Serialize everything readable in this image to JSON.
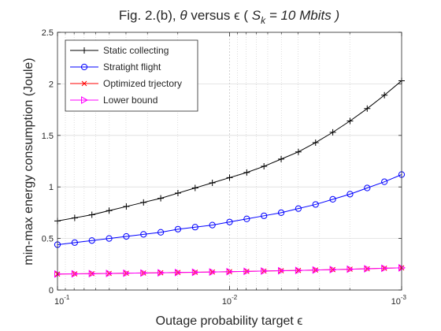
{
  "chart_data": {
    "type": "line",
    "title_prefix": "Fig. 2.(b), ",
    "title_theta": "θ",
    "title_versus": " versus ",
    "title_epsilon": "ϵ",
    "title_open": " (  ",
    "title_S": "S",
    "title_k": "k",
    "title_value": " = 10 Mbits )",
    "xlabel_text": "Outage probability target ",
    "xlabel_epsilon": "ϵ",
    "ylabel": "min-max energy consumption (Joule)",
    "xscale": "log",
    "xreverse": true,
    "xlim": [
      0.1,
      0.001
    ],
    "ylim": [
      0,
      2.5
    ],
    "yticks": [
      0,
      0.5,
      1,
      1.5,
      2,
      2.5
    ],
    "ytick_labels": [
      "0",
      "0.5",
      "1",
      "1.5",
      "2",
      "2.5"
    ],
    "xticks": [
      0.1,
      0.01,
      0.001
    ],
    "xtick_labels": [
      {
        "base": "10",
        "exp": "-1"
      },
      {
        "base": "10",
        "exp": "-2"
      },
      {
        "base": "10",
        "exp": "-3"
      }
    ],
    "grid": true,
    "legend_position": "top-left",
    "x_exponents": [
      -1,
      -1.1,
      -1.2,
      -1.3,
      -1.4,
      -1.5,
      -1.6,
      -1.7,
      -1.8,
      -1.9,
      -2,
      -2.1,
      -2.2,
      -2.3,
      -2.4,
      -2.5,
      -2.6,
      -2.7,
      -2.8,
      -2.9,
      -3
    ],
    "series": [
      {
        "name": "Static collecting",
        "color": "#000000",
        "marker": "plus",
        "values": [
          0.67,
          0.7,
          0.73,
          0.77,
          0.81,
          0.85,
          0.89,
          0.94,
          0.99,
          1.04,
          1.09,
          1.14,
          1.2,
          1.27,
          1.34,
          1.43,
          1.53,
          1.64,
          1.76,
          1.89,
          2.03
        ]
      },
      {
        "name": "Stratight flight",
        "color": "#0000ff",
        "marker": "circle",
        "values": [
          0.44,
          0.46,
          0.48,
          0.5,
          0.52,
          0.54,
          0.56,
          0.59,
          0.61,
          0.63,
          0.66,
          0.69,
          0.72,
          0.75,
          0.79,
          0.83,
          0.88,
          0.93,
          0.99,
          1.05,
          1.12
        ]
      },
      {
        "name": "Optimized trjectory",
        "color": "#ff0000",
        "marker": "x",
        "values": [
          0.155,
          0.157,
          0.159,
          0.161,
          0.163,
          0.165,
          0.167,
          0.17,
          0.172,
          0.175,
          0.178,
          0.181,
          0.184,
          0.187,
          0.19,
          0.194,
          0.198,
          0.202,
          0.206,
          0.211,
          0.215
        ]
      },
      {
        "name": "Lower bound",
        "color": "#ff00ff",
        "marker": "triangle-right",
        "values": [
          0.155,
          0.157,
          0.159,
          0.161,
          0.163,
          0.165,
          0.167,
          0.17,
          0.172,
          0.175,
          0.178,
          0.181,
          0.184,
          0.187,
          0.19,
          0.194,
          0.198,
          0.202,
          0.206,
          0.211,
          0.215
        ]
      }
    ]
  }
}
